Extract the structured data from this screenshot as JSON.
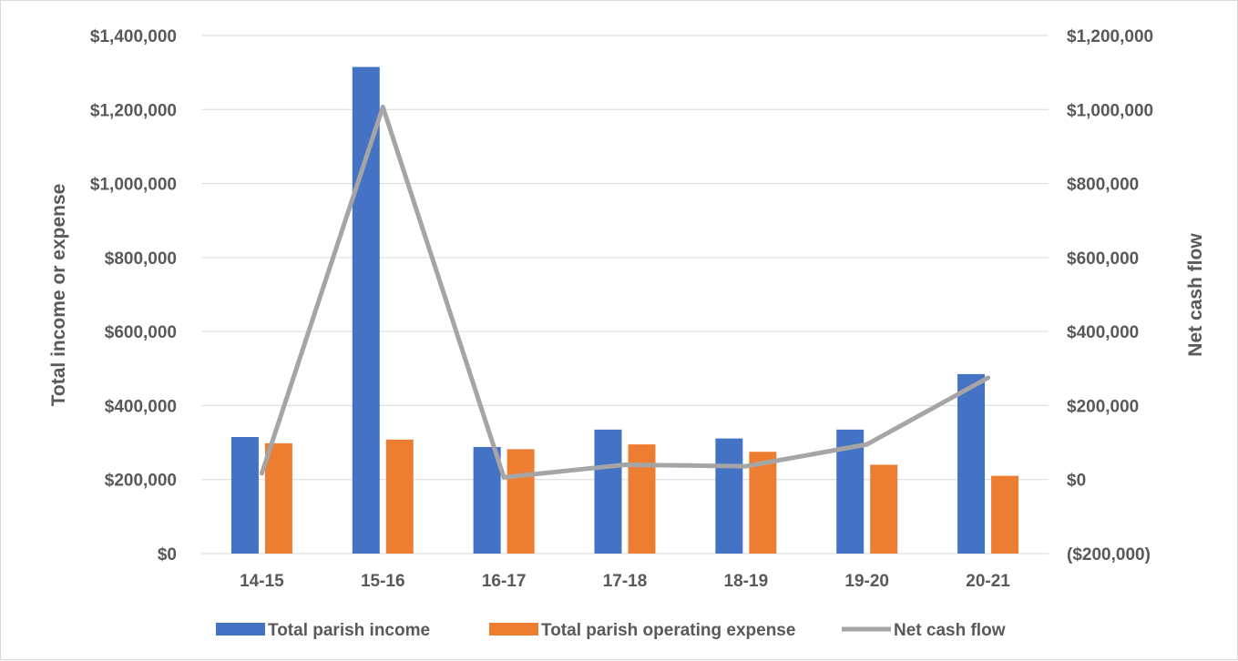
{
  "chart_data": {
    "type": "bar",
    "categories": [
      "14-15",
      "15-16",
      "16-17",
      "17-18",
      "18-19",
      "19-20",
      "20-21"
    ],
    "series": [
      {
        "name": "Total parish income",
        "type": "bar",
        "axis": "left",
        "color": "#4472C4",
        "values": [
          315000,
          1315000,
          288000,
          335000,
          311000,
          335000,
          485000
        ]
      },
      {
        "name": "Total parish operating expense",
        "type": "bar",
        "axis": "left",
        "color": "#ED7D31",
        "values": [
          298000,
          308000,
          282000,
          295000,
          275000,
          240000,
          210000
        ]
      },
      {
        "name": "Net cash flow",
        "type": "line",
        "axis": "right",
        "color": "#A5A5A5",
        "values": [
          17000,
          1007000,
          6000,
          40000,
          36000,
          95000,
          275000
        ]
      }
    ],
    "y_left": {
      "label": "Total income or expense",
      "min": 0,
      "max": 1400000,
      "ticks": [
        0,
        200000,
        400000,
        600000,
        800000,
        1000000,
        1200000,
        1400000
      ],
      "tick_labels": [
        "$0",
        "$200,000",
        "$400,000",
        "$600,000",
        "$800,000",
        "$1,000,000",
        "$1,200,000",
        "$1,400,000"
      ]
    },
    "y_right": {
      "label": "Net cash flow",
      "min": -200000,
      "max": 1200000,
      "ticks": [
        -200000,
        0,
        200000,
        400000,
        600000,
        800000,
        1000000,
        1200000
      ],
      "tick_labels": [
        "($200,000)",
        "$0",
        "$200,000",
        "$400,000",
        "$600,000",
        "$800,000",
        "$1,000,000",
        "$1,200,000"
      ]
    },
    "grid": true,
    "gridline_color": "#D9D9D9",
    "legend_position": "bottom"
  }
}
